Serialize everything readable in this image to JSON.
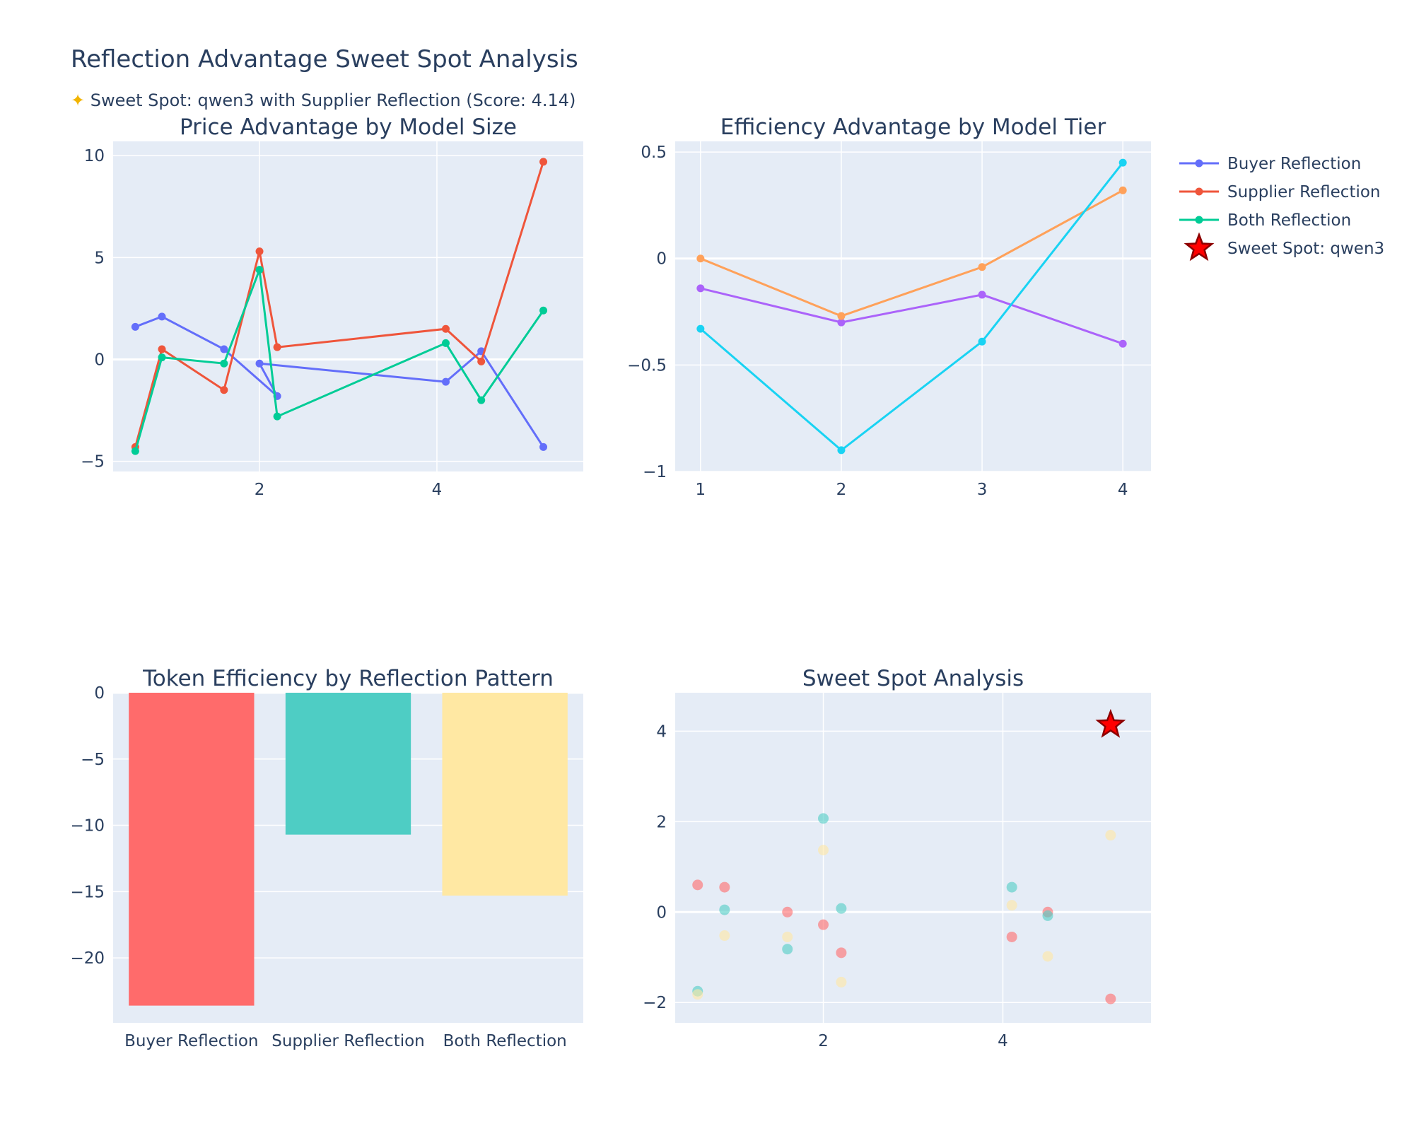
{
  "page": {
    "title": "Reflection Advantage Sweet Spot Analysis",
    "subtitle_icon": "sparkle-star-icon",
    "subtitle": "Sweet Spot: qwen3 with Supplier Reflection (Score: 4.14)"
  },
  "legend": {
    "items": [
      {
        "label": "Buyer Reflection",
        "color": "#636efa",
        "icon": "line-marker"
      },
      {
        "label": "Supplier Reflection",
        "color": "#ef553b",
        "icon": "line-marker"
      },
      {
        "label": "Both Reflection",
        "color": "#00cc96",
        "icon": "line-marker"
      },
      {
        "label": "Sweet Spot: qwen3",
        "color": "#ff0000",
        "icon": "star-icon"
      }
    ]
  },
  "chart_data": [
    {
      "type": "line",
      "title": "Price Advantage by Model Size",
      "xlabel": "",
      "ylabel": "",
      "xlim": [
        0.35,
        5.65
      ],
      "ylim": [
        -5.5,
        10.7
      ],
      "xticks": [
        2,
        4
      ],
      "yticks": [
        -5,
        0,
        5,
        10
      ],
      "grid": true,
      "series": [
        {
          "name": "Buyer Reflection",
          "color": "#636efa",
          "x": [
            0.6,
            0.9,
            1.6,
            2.2,
            2.0,
            4.1,
            4.5,
            5.2
          ],
          "y": [
            1.6,
            2.1,
            0.5,
            -1.8,
            -0.2,
            -1.1,
            0.4,
            -4.3
          ]
        },
        {
          "name": "Supplier Reflection",
          "color": "#ef553b",
          "x": [
            0.6,
            0.9,
            1.6,
            2.0,
            2.2,
            4.1,
            4.5,
            5.2
          ],
          "y": [
            -4.3,
            0.5,
            -1.5,
            5.3,
            0.6,
            1.5,
            -0.1,
            9.7
          ]
        },
        {
          "name": "Both Reflection",
          "color": "#00cc96",
          "x": [
            0.6,
            0.9,
            1.6,
            2.0,
            2.2,
            4.1,
            4.5,
            5.2
          ],
          "y": [
            -4.5,
            0.1,
            -0.2,
            4.4,
            -2.8,
            0.8,
            -2.0,
            2.4
          ]
        }
      ]
    },
    {
      "type": "line",
      "title": "Efficiency Advantage by Model Tier",
      "xlabel": "",
      "ylabel": "",
      "xlim": [
        0.82,
        4.2
      ],
      "ylim": [
        -1.0,
        0.55
      ],
      "xticks": [
        1,
        2,
        3,
        4
      ],
      "yticks": [
        -1,
        -0.5,
        0,
        0.5
      ],
      "grid": true,
      "series": [
        {
          "color": "#ab63fa",
          "x": [
            1,
            2,
            3,
            4
          ],
          "y": [
            -0.14,
            -0.3,
            -0.17,
            -0.4
          ]
        },
        {
          "color": "#ffa15a",
          "x": [
            1,
            2,
            3,
            4
          ],
          "y": [
            0.0,
            -0.27,
            -0.04,
            0.32
          ]
        },
        {
          "color": "#19d3f3",
          "x": [
            1,
            2,
            3,
            4
          ],
          "y": [
            -0.33,
            -0.9,
            -0.39,
            0.45
          ]
        }
      ]
    },
    {
      "type": "bar",
      "title": "Token Efficiency by Reflection Pattern",
      "xlabel": "",
      "ylabel": "",
      "categories": [
        "Buyer Reflection",
        "Supplier Reflection",
        "Both Reflection"
      ],
      "values": [
        -23.6,
        -10.7,
        -15.3
      ],
      "colors": [
        "#ff6b6b",
        "#4ecdc4",
        "#ffe8a3"
      ],
      "ylim": [
        -24.9,
        0
      ],
      "yticks": [
        -20,
        -15,
        -10,
        -5,
        0
      ],
      "grid": true
    },
    {
      "type": "scatter",
      "title": "Sweet Spot Analysis",
      "xlabel": "",
      "ylabel": "",
      "xlim": [
        0.35,
        5.65
      ],
      "ylim": [
        -2.45,
        4.85
      ],
      "xticks": [
        2,
        4
      ],
      "yticks": [
        -2,
        0,
        2,
        4
      ],
      "grid": true,
      "series": [
        {
          "color": "#ff6b6b",
          "x": [
            0.6,
            0.9,
            1.6,
            2.0,
            2.2,
            4.1,
            4.5,
            5.2
          ],
          "y": [
            0.6,
            0.55,
            0.0,
            -0.28,
            -0.9,
            -0.55,
            0.0,
            -1.92
          ]
        },
        {
          "color": "#4ecdc4",
          "x": [
            0.6,
            0.9,
            1.6,
            2.0,
            2.2,
            4.1,
            4.5,
            5.2
          ],
          "y": [
            -1.75,
            0.05,
            -0.82,
            2.07,
            0.08,
            0.55,
            -0.08,
            4.14
          ]
        },
        {
          "color": "#ffe8a3",
          "x": [
            0.6,
            0.9,
            1.6,
            2.0,
            2.2,
            4.1,
            4.5,
            5.2
          ],
          "y": [
            -1.82,
            -0.52,
            -0.55,
            1.37,
            -1.55,
            0.15,
            -0.98,
            1.7
          ]
        }
      ],
      "highlight": {
        "name": "Sweet Spot: qwen3",
        "x": 5.2,
        "y": 4.14,
        "color": "#ff0000",
        "marker": "star"
      }
    }
  ]
}
